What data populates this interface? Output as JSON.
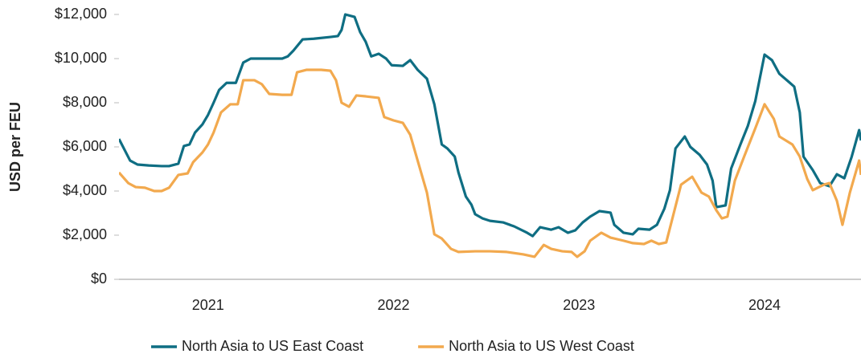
{
  "chart_data": {
    "type": "line",
    "ylabel": "USD per FEU",
    "xlim": [
      2020.52,
      2024.52
    ],
    "xticks": [
      2021,
      2022,
      2023,
      2024
    ],
    "ylim": [
      0,
      12000
    ],
    "yticks": [
      {
        "value": 0,
        "label": "$0"
      },
      {
        "value": 2000,
        "label": "$2,000"
      },
      {
        "value": 4000,
        "label": "$4,000"
      },
      {
        "value": 6000,
        "label": "$6,000"
      },
      {
        "value": 8000,
        "label": "$8,000"
      },
      {
        "value": 10000,
        "label": "$10,000"
      },
      {
        "value": 12000,
        "label": "$12,000"
      }
    ],
    "legend": "bottom",
    "series": [
      {
        "name": "North Asia to US East Coast",
        "color": "#0f6e83",
        "x": [
          2020.52,
          2020.58,
          2020.62,
          2020.68,
          2020.75,
          2020.79,
          2020.84,
          2020.87,
          2020.9,
          2020.93,
          2020.97,
          2021.0,
          2021.03,
          2021.06,
          2021.1,
          2021.15,
          2021.19,
          2021.23,
          2021.31,
          2021.4,
          2021.43,
          2021.46,
          2021.51,
          2021.57,
          2021.66,
          2021.7,
          2021.72,
          2021.74,
          2021.79,
          2021.82,
          2021.85,
          2021.88,
          2021.92,
          2021.96,
          2021.99,
          2022.05,
          2022.09,
          2022.13,
          2022.18,
          2022.22,
          2022.26,
          2022.29,
          2022.33,
          2022.35,
          2022.39,
          2022.42,
          2022.44,
          2022.48,
          2022.52,
          2022.59,
          2022.65,
          2022.72,
          2022.75,
          2022.79,
          2022.85,
          2022.89,
          2022.94,
          2022.98,
          2023.02,
          2023.06,
          2023.11,
          2023.17,
          2023.19,
          2023.24,
          2023.29,
          2023.32,
          2023.38,
          2023.42,
          2023.46,
          2023.49,
          2023.52,
          2023.57,
          2023.6,
          2023.65,
          2023.69,
          2023.72,
          2023.74,
          2023.79,
          2023.82,
          2023.87,
          2023.91,
          2023.95,
          2024.0,
          2024.04,
          2024.08,
          2024.13,
          2024.16,
          2024.19,
          2024.21,
          2024.26,
          2024.3,
          2024.35,
          2024.39,
          2024.43,
          2024.47,
          2024.51,
          2024.52
        ],
        "values": [
          6360,
          5380,
          5200,
          5160,
          5130,
          5130,
          5240,
          6040,
          6110,
          6650,
          7020,
          7450,
          8000,
          8580,
          8900,
          8900,
          9820,
          10000,
          10000,
          10000,
          10100,
          10360,
          10870,
          10900,
          10980,
          11020,
          11300,
          12000,
          11890,
          11200,
          10760,
          10100,
          10220,
          10000,
          9700,
          9670,
          9930,
          9490,
          9090,
          7930,
          6110,
          5930,
          5560,
          4840,
          3750,
          3380,
          2950,
          2760,
          2650,
          2580,
          2400,
          2110,
          1960,
          2360,
          2250,
          2360,
          2110,
          2220,
          2580,
          2840,
          3090,
          3020,
          2470,
          2110,
          2040,
          2290,
          2250,
          2470,
          3200,
          4040,
          5930,
          6470,
          6000,
          5640,
          5200,
          4470,
          3270,
          3350,
          5020,
          6110,
          6950,
          8070,
          10180,
          9930,
          9310,
          8950,
          8730,
          7560,
          5560,
          4950,
          4360,
          4220,
          4760,
          4580,
          5560,
          6760,
          6290
        ]
      },
      {
        "name": "North Asia to US West Coast",
        "color": "#f2a94e",
        "x": [
          2020.52,
          2020.57,
          2020.61,
          2020.66,
          2020.71,
          2020.75,
          2020.79,
          2020.84,
          2020.89,
          2020.92,
          2020.97,
          2021.0,
          2021.03,
          2021.07,
          2021.12,
          2021.16,
          2021.19,
          2021.25,
          2021.29,
          2021.33,
          2021.4,
          2021.45,
          2021.48,
          2021.53,
          2021.61,
          2021.66,
          2021.69,
          2021.72,
          2021.76,
          2021.8,
          2021.85,
          2021.92,
          2021.95,
          2022.0,
          2022.05,
          2022.09,
          2022.13,
          2022.18,
          2022.22,
          2022.26,
          2022.31,
          2022.35,
          2022.44,
          2022.52,
          2022.61,
          2022.7,
          2022.76,
          2022.81,
          2022.85,
          2022.91,
          2022.96,
          2022.99,
          2023.03,
          2023.06,
          2023.12,
          2023.17,
          2023.24,
          2023.29,
          2023.35,
          2023.39,
          2023.43,
          2023.47,
          2023.5,
          2023.55,
          2023.61,
          2023.66,
          2023.7,
          2023.74,
          2023.77,
          2023.8,
          2023.84,
          2023.89,
          2023.95,
          2024.0,
          2024.05,
          2024.08,
          2024.15,
          2024.19,
          2024.23,
          2024.26,
          2024.32,
          2024.35,
          2024.39,
          2024.42,
          2024.46,
          2024.51,
          2024.52
        ],
        "values": [
          4840,
          4360,
          4180,
          4150,
          4000,
          4000,
          4150,
          4730,
          4800,
          5310,
          5750,
          6110,
          6650,
          7560,
          7930,
          7930,
          9020,
          9020,
          8840,
          8400,
          8360,
          8360,
          9380,
          9490,
          9490,
          9450,
          9020,
          8000,
          7820,
          8330,
          8290,
          8220,
          7350,
          7200,
          7090,
          6550,
          5380,
          3930,
          2040,
          1850,
          1380,
          1240,
          1270,
          1270,
          1240,
          1130,
          1020,
          1560,
          1380,
          1270,
          1240,
          1020,
          1270,
          1750,
          2110,
          1890,
          1750,
          1640,
          1600,
          1750,
          1600,
          1670,
          2650,
          4290,
          4650,
          3930,
          3750,
          3130,
          2760,
          2840,
          4470,
          5560,
          6840,
          7930,
          7270,
          6470,
          6110,
          5560,
          4550,
          4040,
          4290,
          4360,
          3560,
          2470,
          3930,
          5380,
          4730
        ]
      }
    ]
  }
}
